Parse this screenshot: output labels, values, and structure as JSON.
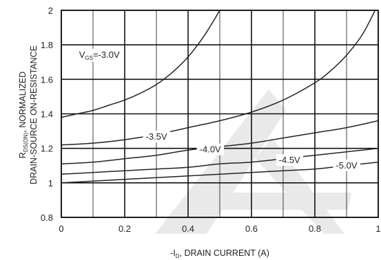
{
  "chart_data": {
    "type": "line",
    "title": "",
    "xlabel": {
      "prefix": "-I",
      "sub": "D",
      "suffix": ", DRAIN CURRENT (A)"
    },
    "ylabel": {
      "line1_prefix": "R",
      "line1_sub": "DS(ON)",
      "line1_suffix": ", NORMALIZED",
      "line2": "DRAIN-SOURCE ON-RESISTANCE"
    },
    "xlim": [
      0,
      1
    ],
    "ylim": [
      0.8,
      2
    ],
    "x_ticks": [
      0,
      0.2,
      0.4,
      0.6,
      0.8,
      1
    ],
    "x_tick_labels": [
      "0",
      "0.2",
      "0.4",
      "0.6",
      "0.8",
      "1"
    ],
    "y_ticks": [
      0.8,
      1,
      1.2,
      1.4,
      1.6,
      1.8,
      2
    ],
    "y_tick_labels": [
      "0.8",
      "1",
      "1.2",
      "1.4",
      "1.6",
      "1.8",
      "2"
    ],
    "major_grid": true,
    "minor_grid_x": [
      0.1,
      0.3,
      0.5,
      0.7,
      0.9
    ],
    "series": [
      {
        "name": "-3.0V",
        "label": {
          "prefix": "V",
          "sub": "GS",
          "suffix": "=-3.0V"
        },
        "x": [
          0.0,
          0.05,
          0.1,
          0.15,
          0.2,
          0.25,
          0.3,
          0.35,
          0.4,
          0.45,
          0.5
        ],
        "y": [
          1.38,
          1.4,
          1.42,
          1.45,
          1.48,
          1.52,
          1.57,
          1.64,
          1.73,
          1.85,
          2.0
        ]
      },
      {
        "name": "-3.5V",
        "label": {
          "text": "-3.5V"
        },
        "x": [
          0.0,
          0.1,
          0.2,
          0.3,
          0.4,
          0.5,
          0.6,
          0.7,
          0.8,
          0.85,
          0.9,
          0.95,
          0.99
        ],
        "y": [
          1.22,
          1.23,
          1.25,
          1.28,
          1.32,
          1.36,
          1.41,
          1.48,
          1.58,
          1.65,
          1.74,
          1.86,
          2.0
        ]
      },
      {
        "name": "-4.0V",
        "label": {
          "text": "-4.0V"
        },
        "x": [
          0.0,
          0.1,
          0.2,
          0.3,
          0.4,
          0.5,
          0.6,
          0.7,
          0.8,
          0.9,
          1.0
        ],
        "y": [
          1.11,
          1.12,
          1.14,
          1.16,
          1.19,
          1.21,
          1.23,
          1.26,
          1.29,
          1.32,
          1.36
        ]
      },
      {
        "name": "-4.5V",
        "label": {
          "text": "-4.5V"
        },
        "x": [
          0.0,
          0.1,
          0.2,
          0.3,
          0.4,
          0.5,
          0.6,
          0.7,
          0.8,
          0.9,
          1.0
        ],
        "y": [
          1.05,
          1.06,
          1.07,
          1.08,
          1.09,
          1.11,
          1.12,
          1.14,
          1.16,
          1.18,
          1.2
        ]
      },
      {
        "name": "-5.0V",
        "label": {
          "text": "-5.0V"
        },
        "x": [
          0.0,
          0.1,
          0.2,
          0.3,
          0.4,
          0.5,
          0.6,
          0.7,
          0.8,
          0.9,
          1.0
        ],
        "y": [
          1.0,
          1.01,
          1.02,
          1.03,
          1.04,
          1.05,
          1.06,
          1.07,
          1.08,
          1.1,
          1.12
        ]
      }
    ],
    "colors": {
      "line": "#222222",
      "grid": "#111111",
      "watermark": "#e6e6e6"
    }
  }
}
